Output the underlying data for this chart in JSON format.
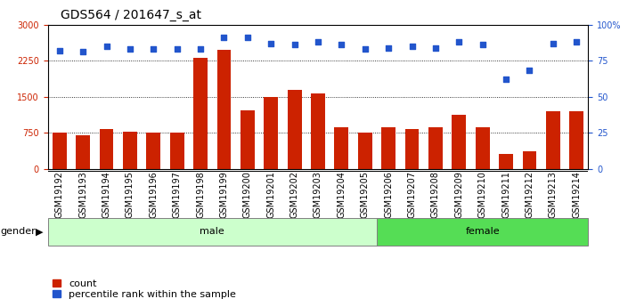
{
  "title": "GDS564 / 201647_s_at",
  "samples": [
    "GSM19192",
    "GSM19193",
    "GSM19194",
    "GSM19195",
    "GSM19196",
    "GSM19197",
    "GSM19198",
    "GSM19199",
    "GSM19200",
    "GSM19201",
    "GSM19202",
    "GSM19203",
    "GSM19204",
    "GSM19205",
    "GSM19206",
    "GSM19207",
    "GSM19208",
    "GSM19209",
    "GSM19210",
    "GSM19211",
    "GSM19212",
    "GSM19213",
    "GSM19214"
  ],
  "counts": [
    750,
    700,
    820,
    775,
    755,
    760,
    2300,
    2480,
    1220,
    1500,
    1650,
    1560,
    870,
    750,
    870,
    830,
    860,
    1130,
    860,
    310,
    370,
    1200,
    1200
  ],
  "percentiles": [
    82,
    81,
    85,
    83,
    83,
    83,
    83,
    91,
    91,
    87,
    86,
    88,
    86,
    83,
    84,
    85,
    84,
    88,
    86,
    62,
    68,
    87,
    88
  ],
  "male_count": 14,
  "female_count": 9,
  "male_color": "#ccffcc",
  "female_color": "#55dd55",
  "ylim_left": [
    0,
    3000
  ],
  "ylim_right": [
    0,
    100
  ],
  "yticks_left": [
    0,
    750,
    1500,
    2250,
    3000
  ],
  "yticks_right": [
    0,
    25,
    50,
    75,
    100
  ],
  "bar_color": "#cc2200",
  "dot_color": "#2255cc",
  "left_axis_color": "#cc2200",
  "right_axis_color": "#2255cc",
  "grid_color": "black",
  "plot_bg_color": "#ffffff",
  "title_fontsize": 10,
  "tick_fontsize": 7,
  "gender_fontsize": 8,
  "legend_fontsize": 8
}
